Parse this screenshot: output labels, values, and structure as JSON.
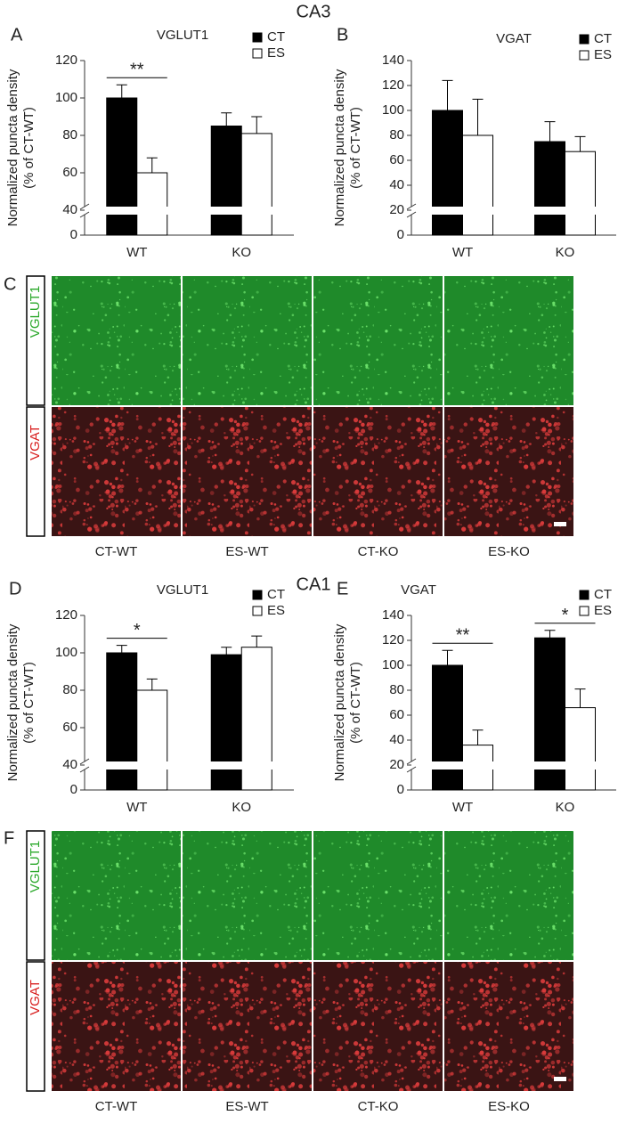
{
  "chart_data": [
    {
      "type": "bar",
      "panel": "A",
      "title": "VGLUT1",
      "ylabel": [
        "Normalized puncta density",
        "(% of CT-WT)"
      ],
      "categories": [
        "WT",
        "KO"
      ],
      "series": [
        {
          "name": "CT",
          "color": "#000000",
          "values": [
            100,
            85
          ],
          "errors": [
            7,
            7
          ]
        },
        {
          "name": "ES",
          "color": "#ffffff",
          "values": [
            60,
            81
          ],
          "errors": [
            8,
            9
          ]
        }
      ],
      "ylim": [
        0,
        120
      ],
      "axis_break": [
        0,
        40
      ],
      "yticks": [
        0,
        40,
        60,
        80,
        100,
        120
      ],
      "annotations": [
        {
          "text": "**",
          "category": "WT"
        }
      ],
      "legend": "top-right"
    },
    {
      "type": "bar",
      "panel": "B",
      "title": "VGAT",
      "ylabel": [
        "Normalized puncta density",
        "(% of CT-WT)"
      ],
      "categories": [
        "WT",
        "KO"
      ],
      "series": [
        {
          "name": "CT",
          "color": "#000000",
          "values": [
            100,
            75
          ],
          "errors": [
            24,
            16
          ]
        },
        {
          "name": "ES",
          "color": "#ffffff",
          "values": [
            80,
            67
          ],
          "errors": [
            29,
            12
          ]
        }
      ],
      "ylim": [
        0,
        140
      ],
      "axis_break": [
        0,
        20
      ],
      "yticks": [
        0,
        20,
        40,
        60,
        80,
        100,
        120,
        140
      ],
      "annotations": [],
      "legend": "top-right"
    },
    {
      "type": "bar",
      "panel": "D",
      "title": "VGLUT1",
      "ylabel": [
        "Normalized puncta density",
        "(% of CT-WT)"
      ],
      "categories": [
        "WT",
        "KO"
      ],
      "series": [
        {
          "name": "CT",
          "color": "#000000",
          "values": [
            100,
            99
          ],
          "errors": [
            4,
            4
          ]
        },
        {
          "name": "ES",
          "color": "#ffffff",
          "values": [
            80,
            103
          ],
          "errors": [
            6,
            6
          ]
        }
      ],
      "ylim": [
        0,
        120
      ],
      "axis_break": [
        0,
        40
      ],
      "yticks": [
        0,
        40,
        60,
        80,
        100,
        120
      ],
      "annotations": [
        {
          "text": "*",
          "category": "WT"
        }
      ],
      "legend": "top-right"
    },
    {
      "type": "bar",
      "panel": "E",
      "title": "VGAT",
      "ylabel": [
        "Normalized puncta density",
        "(% of CT-WT)"
      ],
      "categories": [
        "WT",
        "KO"
      ],
      "series": [
        {
          "name": "CT",
          "color": "#000000",
          "values": [
            100,
            122
          ],
          "errors": [
            12,
            6
          ]
        },
        {
          "name": "ES",
          "color": "#ffffff",
          "values": [
            36,
            66
          ],
          "errors": [
            12,
            15
          ]
        }
      ],
      "ylim": [
        0,
        140
      ],
      "axis_break": [
        0,
        20
      ],
      "yticks": [
        0,
        20,
        40,
        60,
        80,
        100,
        120,
        140
      ],
      "annotations": [
        {
          "text": "**",
          "category": "WT"
        },
        {
          "text": "*",
          "category": "KO"
        }
      ],
      "legend": "top-right"
    }
  ],
  "sections": [
    {
      "title": "CA3",
      "image_panel": "C",
      "rows": [
        "VGLUT1",
        "VGAT"
      ],
      "columns": [
        "CT-WT",
        "ES-WT",
        "CT-KO",
        "ES-KO"
      ]
    },
    {
      "title": "CA1",
      "image_panel": "F",
      "rows": [
        "VGLUT1",
        "VGAT"
      ],
      "columns": [
        "CT-WT",
        "ES-WT",
        "CT-KO",
        "ES-KO"
      ]
    }
  ]
}
